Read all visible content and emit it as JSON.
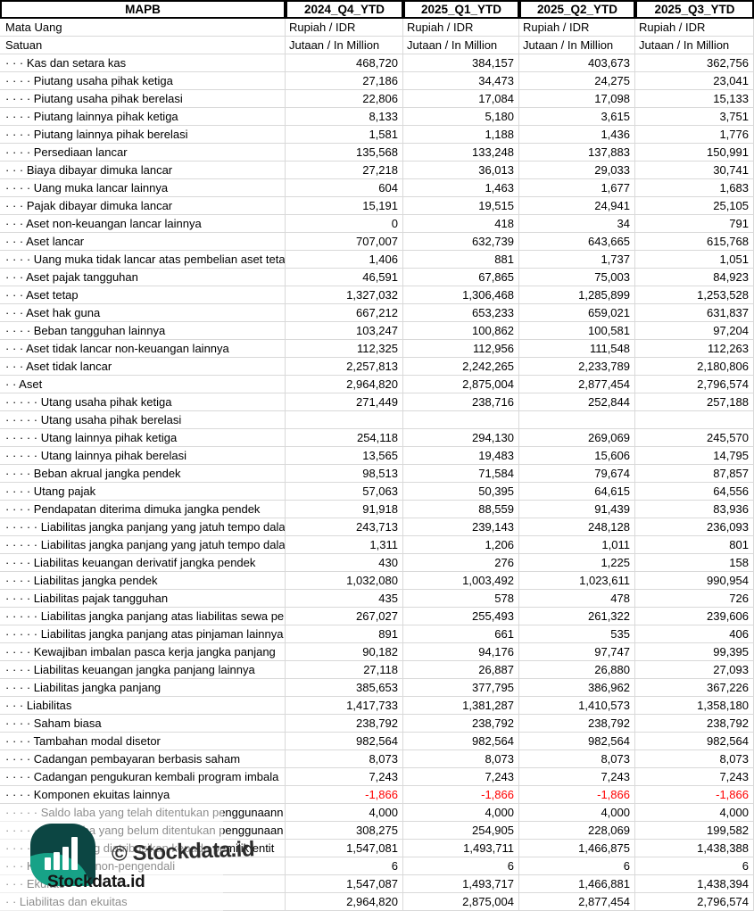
{
  "header": {
    "label": "MAPB",
    "periods": [
      "2024_Q4_YTD",
      "2025_Q1_YTD",
      "2025_Q2_YTD",
      "2025_Q3_YTD"
    ]
  },
  "meta_rows": [
    {
      "label": "Mata Uang",
      "values": [
        "Rupiah / IDR",
        "Rupiah / IDR",
        "Rupiah / IDR",
        "Rupiah / IDR"
      ]
    },
    {
      "label": "Satuan",
      "values": [
        "Jutaan / In Million",
        "Jutaan / In Million",
        "Jutaan / In Million",
        "Jutaan / In Million"
      ]
    }
  ],
  "rows": [
    {
      "dots": 3,
      "label": "Kas dan setara kas",
      "values": [
        "468,720",
        "384,157",
        "403,673",
        "362,756"
      ]
    },
    {
      "dots": 4,
      "label": "Piutang usaha pihak ketiga",
      "values": [
        "27,186",
        "34,473",
        "24,275",
        "23,041"
      ]
    },
    {
      "dots": 4,
      "label": "Piutang usaha pihak berelasi",
      "values": [
        "22,806",
        "17,084",
        "17,098",
        "15,133"
      ]
    },
    {
      "dots": 4,
      "label": "Piutang lainnya pihak ketiga",
      "values": [
        "8,133",
        "5,180",
        "3,615",
        "3,751"
      ]
    },
    {
      "dots": 4,
      "label": "Piutang lainnya pihak berelasi",
      "values": [
        "1,581",
        "1,188",
        "1,436",
        "1,776"
      ]
    },
    {
      "dots": 4,
      "label": "Persediaan lancar",
      "values": [
        "135,568",
        "133,248",
        "137,883",
        "150,991"
      ]
    },
    {
      "dots": 3,
      "label": "Biaya dibayar dimuka lancar",
      "values": [
        "27,218",
        "36,013",
        "29,033",
        "30,741"
      ]
    },
    {
      "dots": 4,
      "label": "Uang muka lancar lainnya",
      "values": [
        "604",
        "1,463",
        "1,677",
        "1,683"
      ]
    },
    {
      "dots": 3,
      "label": "Pajak dibayar dimuka lancar",
      "values": [
        "15,191",
        "19,515",
        "24,941",
        "25,105"
      ]
    },
    {
      "dots": 3,
      "label": "Aset non-keuangan lancar lainnya",
      "values": [
        "0",
        "418",
        "34",
        "791"
      ]
    },
    {
      "dots": 3,
      "label": "Aset lancar",
      "values": [
        "707,007",
        "632,739",
        "643,665",
        "615,768"
      ]
    },
    {
      "dots": 4,
      "label": "Uang muka tidak lancar atas pembelian aset teta",
      "values": [
        "1,406",
        "881",
        "1,737",
        "1,051"
      ]
    },
    {
      "dots": 3,
      "label": "Aset pajak tangguhan",
      "values": [
        "46,591",
        "67,865",
        "75,003",
        "84,923"
      ]
    },
    {
      "dots": 3,
      "label": "Aset tetap",
      "values": [
        "1,327,032",
        "1,306,468",
        "1,285,899",
        "1,253,528"
      ]
    },
    {
      "dots": 3,
      "label": "Aset hak guna",
      "values": [
        "667,212",
        "653,233",
        "659,021",
        "631,837"
      ]
    },
    {
      "dots": 4,
      "label": "Beban tangguhan lainnya",
      "values": [
        "103,247",
        "100,862",
        "100,581",
        "97,204"
      ]
    },
    {
      "dots": 3,
      "label": "Aset tidak lancar non-keuangan lainnya",
      "values": [
        "112,325",
        "112,956",
        "111,548",
        "112,263"
      ]
    },
    {
      "dots": 3,
      "label": "Aset tidak lancar",
      "values": [
        "2,257,813",
        "2,242,265",
        "2,233,789",
        "2,180,806"
      ]
    },
    {
      "dots": 2,
      "label": "Aset",
      "values": [
        "2,964,820",
        "2,875,004",
        "2,877,454",
        "2,796,574"
      ]
    },
    {
      "dots": 5,
      "label": "Utang usaha pihak ketiga",
      "values": [
        "271,449",
        "238,716",
        "252,844",
        "257,188"
      ]
    },
    {
      "dots": 5,
      "label": "Utang usaha pihak berelasi",
      "values": [
        "",
        "",
        "",
        ""
      ]
    },
    {
      "dots": 5,
      "label": "Utang lainnya pihak ketiga",
      "values": [
        "254,118",
        "294,130",
        "269,069",
        "245,570"
      ]
    },
    {
      "dots": 5,
      "label": "Utang lainnya pihak berelasi",
      "values": [
        "13,565",
        "19,483",
        "15,606",
        "14,795"
      ]
    },
    {
      "dots": 4,
      "label": "Beban akrual jangka pendek",
      "values": [
        "98,513",
        "71,584",
        "79,674",
        "87,857"
      ]
    },
    {
      "dots": 4,
      "label": "Utang pajak",
      "values": [
        "57,063",
        "50,395",
        "64,615",
        "64,556"
      ]
    },
    {
      "dots": 4,
      "label": "Pendapatan diterima dimuka jangka pendek",
      "values": [
        "91,918",
        "88,559",
        "91,439",
        "83,936"
      ]
    },
    {
      "dots": 5,
      "label": "Liabilitas jangka panjang yang jatuh tempo dala",
      "values": [
        "243,713",
        "239,143",
        "248,128",
        "236,093"
      ]
    },
    {
      "dots": 5,
      "label": "Liabilitas jangka panjang yang jatuh tempo dala",
      "values": [
        "1,311",
        "1,206",
        "1,011",
        "801"
      ]
    },
    {
      "dots": 4,
      "label": "Liabilitas keuangan derivatif jangka pendek",
      "values": [
        "430",
        "276",
        "1,225",
        "158"
      ]
    },
    {
      "dots": 4,
      "label": "Liabilitas jangka pendek",
      "values": [
        "1,032,080",
        "1,003,492",
        "1,023,611",
        "990,954"
      ]
    },
    {
      "dots": 4,
      "label": "Liabilitas pajak tangguhan",
      "values": [
        "435",
        "578",
        "478",
        "726"
      ]
    },
    {
      "dots": 5,
      "label": "Liabilitas jangka panjang atas liabilitas sewa pe",
      "values": [
        "267,027",
        "255,493",
        "261,322",
        "239,606"
      ]
    },
    {
      "dots": 5,
      "label": "Liabilitas jangka panjang atas pinjaman lainnya",
      "values": [
        "891",
        "661",
        "535",
        "406"
      ]
    },
    {
      "dots": 4,
      "label": "Kewajiban imbalan pasca kerja jangka panjang",
      "values": [
        "90,182",
        "94,176",
        "97,747",
        "99,395"
      ]
    },
    {
      "dots": 4,
      "label": "Liabilitas keuangan jangka panjang lainnya",
      "values": [
        "27,118",
        "26,887",
        "26,880",
        "27,093"
      ]
    },
    {
      "dots": 4,
      "label": "Liabilitas jangka panjang",
      "values": [
        "385,653",
        "377,795",
        "386,962",
        "367,226"
      ]
    },
    {
      "dots": 3,
      "label": "Liabilitas",
      "values": [
        "1,417,733",
        "1,381,287",
        "1,410,573",
        "1,358,180"
      ]
    },
    {
      "dots": 4,
      "label": "Saham biasa",
      "values": [
        "238,792",
        "238,792",
        "238,792",
        "238,792"
      ]
    },
    {
      "dots": 4,
      "label": "Tambahan modal disetor",
      "values": [
        "982,564",
        "982,564",
        "982,564",
        "982,564"
      ]
    },
    {
      "dots": 4,
      "label": "Cadangan pembayaran berbasis saham",
      "values": [
        "8,073",
        "8,073",
        "8,073",
        "8,073"
      ]
    },
    {
      "dots": 4,
      "label": "Cadangan pengukuran kembali program imbala",
      "values": [
        "7,243",
        "7,243",
        "7,243",
        "7,243"
      ]
    },
    {
      "dots": 4,
      "label": "Komponen ekuitas lainnya",
      "values": [
        "-1,866",
        "-1,866",
        "-1,866",
        "-1,866"
      ]
    },
    {
      "dots": 5,
      "label": "Saldo laba yang telah ditentukan penggunaann",
      "values": [
        "4,000",
        "4,000",
        "4,000",
        "4,000"
      ]
    },
    {
      "dots": 5,
      "label": "Saldo laba yang belum ditentukan penggunaan",
      "values": [
        "308,275",
        "254,905",
        "228,069",
        "199,582"
      ]
    },
    {
      "dots": 4,
      "label": "Ekuitas yang diatribusikan kepada pemilik entit",
      "values": [
        "1,547,081",
        "1,493,711",
        "1,466,875",
        "1,438,388"
      ]
    },
    {
      "dots": 3,
      "label": "Kepentingan non-pengendali",
      "values": [
        "6",
        "6",
        "6",
        "6"
      ]
    },
    {
      "dots": 3,
      "label": "Ekuitas",
      "values": [
        "1,547,087",
        "1,493,717",
        "1,466,881",
        "1,438,394"
      ]
    },
    {
      "dots": 2,
      "label": "Liabilitas dan ekuitas",
      "values": [
        "2,964,820",
        "2,875,004",
        "2,877,454",
        "2,796,574"
      ]
    }
  ],
  "watermark": {
    "copyright_text": "© Stockdata.id",
    "logo_text": "Stockdata.id"
  },
  "colors": {
    "negative_value": "#ff0000",
    "logo_dark_teal": "#0c4643",
    "logo_green": "#17a287",
    "watermark_text": "#2b2b2b"
  }
}
